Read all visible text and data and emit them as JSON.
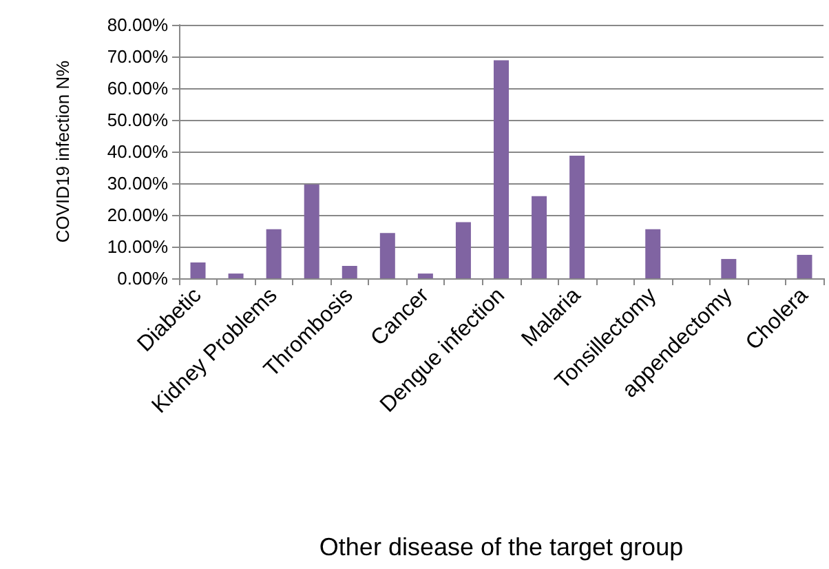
{
  "chart_data": {
    "type": "bar",
    "xlabel": "Other disease of the target group",
    "ylabel": "COVID19 infection N%",
    "categories": [
      "Diabetic",
      null,
      "Kidney Problems",
      null,
      "Thrombosis",
      null,
      "Cancer",
      null,
      "Dengue infection",
      null,
      "Malaria",
      null,
      "Tonsillectomy",
      null,
      "appendectomy",
      null,
      "Cholera"
    ],
    "values": [
      5,
      1.5,
      15.5,
      29.6,
      3.9,
      14.3,
      1.5,
      17.7,
      68.8,
      25.9,
      38.7,
      0,
      15.5,
      0,
      6.1,
      0,
      7.4
    ],
    "color": "#8064a2",
    "ylim": [
      0,
      80
    ],
    "yticks": [
      {
        "value": 0,
        "label": "0.00%"
      },
      {
        "value": 10,
        "label": "10.00%"
      },
      {
        "value": 20,
        "label": "20.00%"
      },
      {
        "value": 30,
        "label": "30.00%"
      },
      {
        "value": 40,
        "label": "40.00%"
      },
      {
        "value": 50,
        "label": "50.00%"
      },
      {
        "value": 60,
        "label": "60.00%"
      },
      {
        "value": 70,
        "label": "70.00%"
      },
      {
        "value": 80,
        "label": "80.00%"
      }
    ],
    "grid": "y"
  }
}
